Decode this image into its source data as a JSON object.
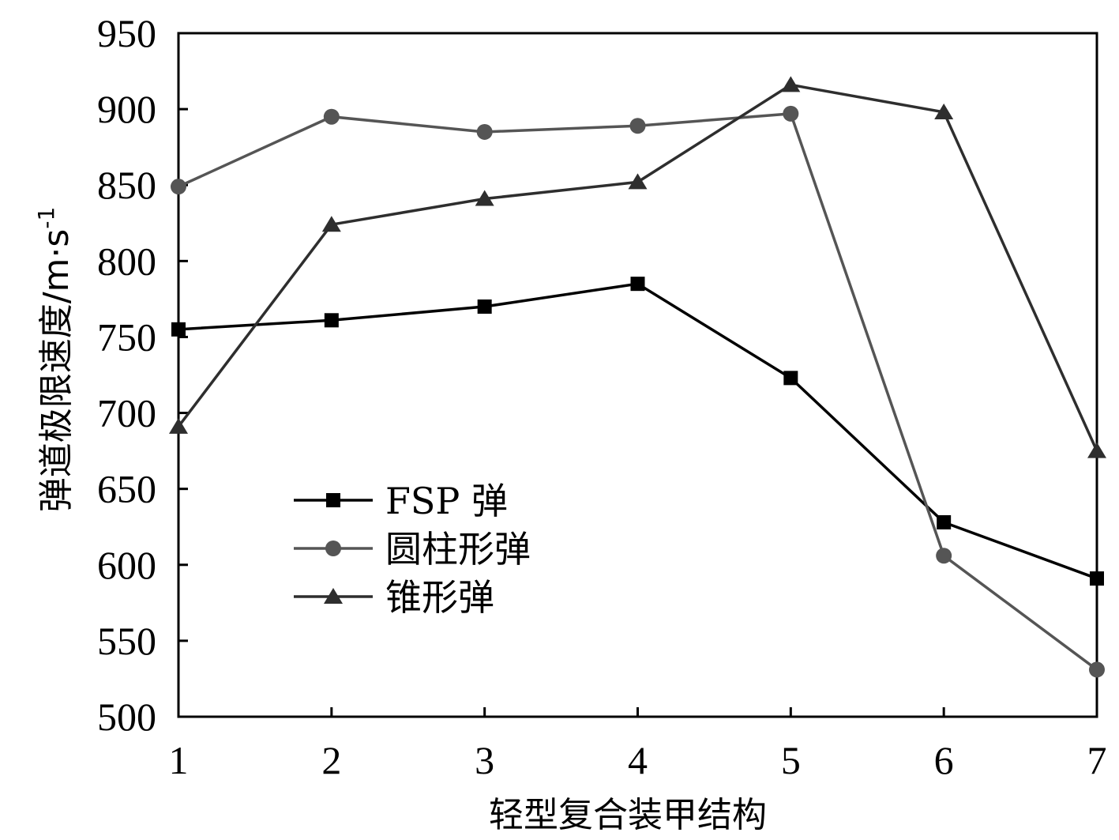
{
  "chart_data": {
    "type": "line",
    "title": "",
    "xlabel": "轻型复合装甲结构",
    "ylabel_main": "弹道极限速度/m·s",
    "ylabel_sup": "-1",
    "x": [
      1,
      2,
      3,
      4,
      5,
      6,
      7
    ],
    "xlim": [
      1,
      7
    ],
    "ylim": [
      500,
      950
    ],
    "yticks": [
      500,
      550,
      600,
      650,
      700,
      750,
      800,
      850,
      900,
      950
    ],
    "grid": false,
    "legend_position": "lower-left",
    "series": [
      {
        "name": "FSP 弹",
        "marker": "square",
        "color": "#000000",
        "values": [
          755,
          761,
          770,
          785,
          723,
          628,
          591
        ]
      },
      {
        "name": "圆柱形弹",
        "marker": "circle",
        "color": "#555555",
        "values": [
          849,
          895,
          885,
          889,
          897,
          606,
          531
        ]
      },
      {
        "name": "锥形弹",
        "marker": "triangle",
        "color": "#2e2e2e",
        "values": [
          691,
          824,
          841,
          852,
          916,
          898,
          675
        ]
      }
    ]
  }
}
